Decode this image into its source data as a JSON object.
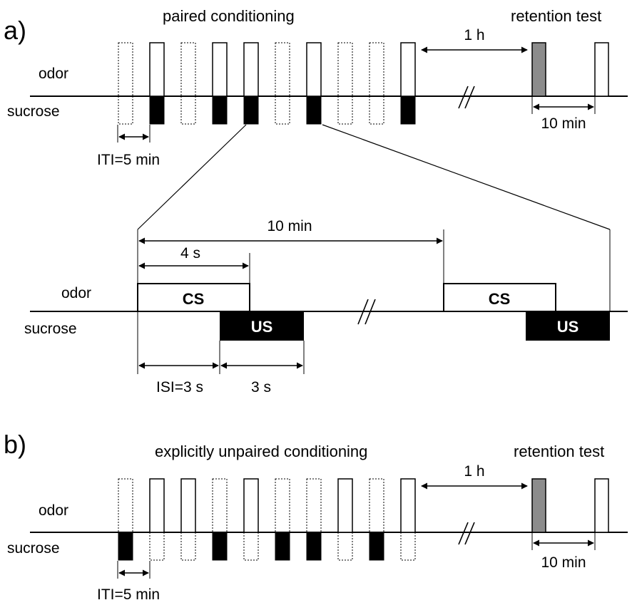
{
  "panel_a": {
    "letter": "a)",
    "title": "paired conditioning",
    "retention_title": "retention test",
    "odor_label": "odor",
    "sucrose_label": "sucrose",
    "gap_label": "1 h",
    "test_interval": "10 min",
    "iti_label": "ITI=5 min",
    "odor_pattern": [
      0,
      1,
      0,
      1,
      1,
      0,
      1,
      0,
      0,
      1
    ],
    "sucrose_pattern": [
      0,
      1,
      0,
      1,
      1,
      0,
      1,
      0,
      0,
      1
    ]
  },
  "detail": {
    "odor_label": "odor",
    "sucrose_label": "sucrose",
    "trial_interval": "10 min",
    "cs_duration": "4 s",
    "cs_label": "CS",
    "us_label": "US",
    "isi_label": "ISI=3 s",
    "us_duration": "3 s"
  },
  "panel_b": {
    "letter": "b)",
    "title": "explicitly unpaired conditioning",
    "retention_title": "retention test",
    "odor_label": "odor",
    "sucrose_label": "sucrose",
    "gap_label": "1 h",
    "test_interval": "10 min",
    "iti_label": "ITI=5 min",
    "odor_pattern": [
      0,
      1,
      1,
      0,
      1,
      0,
      0,
      1,
      0,
      1
    ],
    "sucrose_pattern": [
      1,
      0,
      0,
      1,
      0,
      1,
      1,
      0,
      1,
      0
    ]
  },
  "colors": {
    "test_odor_fill": "#8c8c8c",
    "us_fill": "#000000",
    "line": "#000000"
  }
}
